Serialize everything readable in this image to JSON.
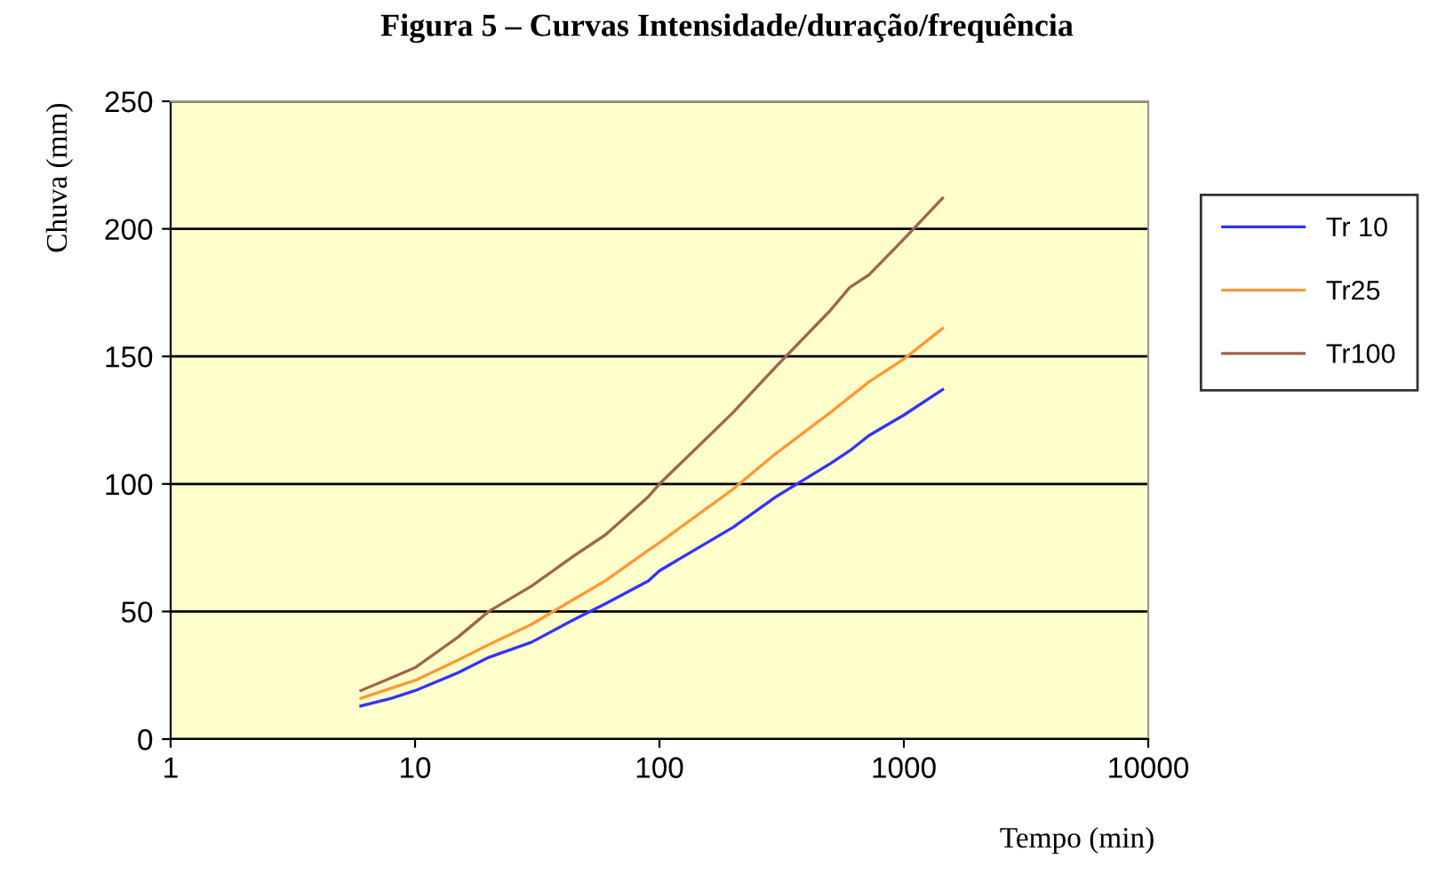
{
  "chart_data": {
    "type": "line",
    "title": "Figura 5 – Curvas Intensidade/duração/frequência",
    "xlabel": "Tempo (min)",
    "ylabel": "Chuva (mm)",
    "log": "x",
    "x": [
      6,
      8,
      10,
      15,
      20,
      30,
      45,
      60,
      90,
      100,
      200,
      300,
      500,
      600,
      720,
      1000,
      1440
    ],
    "series": [
      {
        "name": "Tr 10",
        "color": "#3333ff",
        "values": [
          13,
          16,
          19,
          26,
          32,
          38,
          47,
          53,
          62,
          66,
          83,
          95,
          108,
          113,
          119,
          127,
          137
        ]
      },
      {
        "name": "Tr25",
        "color": "#ff9933",
        "values": [
          16,
          20,
          23,
          31,
          37,
          45,
          55,
          62,
          74,
          77,
          98,
          112,
          128,
          134,
          140,
          149,
          161
        ]
      },
      {
        "name": "Tr100",
        "color": "#a0644b",
        "values": [
          19,
          24,
          28,
          40,
          50,
          60,
          72,
          80,
          95,
          100,
          128,
          146,
          168,
          177,
          182,
          196,
          212
        ]
      }
    ],
    "xlim": [
      1,
      10000
    ],
    "xticks": [
      1,
      10,
      100,
      1000,
      10000
    ],
    "ylim": [
      0,
      250
    ],
    "yticks": [
      0,
      50,
      100,
      150,
      200,
      250
    ],
    "grid": "y",
    "legend": "right",
    "line_style": "solid",
    "marker": "none"
  }
}
